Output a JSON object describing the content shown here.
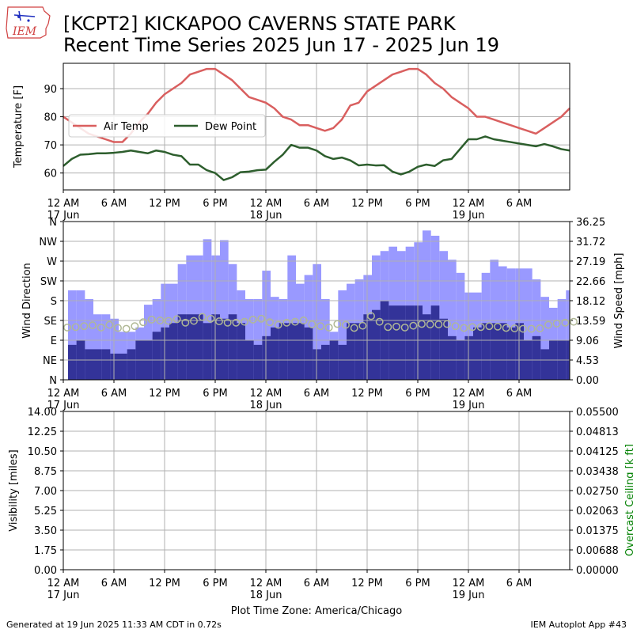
{
  "header": {
    "title_line1": "[KCPT2] KICKAPOO CAVERNS STATE PARK",
    "title_line2": "Recent Time Series 2025 Jun 17 - 2025 Jun 19",
    "logo_text": "IEM"
  },
  "footer": {
    "generated": "Generated at 19 Jun 2025 11:33 AM CDT in 0.72s",
    "app": "IEM Autoplot App #43"
  },
  "colors": {
    "air_temp": "#d95f5f",
    "dew_point": "#2d5e2d",
    "wind_gust": "#9999ff",
    "wind_speed": "#333399",
    "wind_dir_marker": "#b0b896",
    "ceiling_label": "#008000",
    "grid": "#b0b0b0"
  },
  "chart_data": [
    {
      "type": "line",
      "ylabel": "Temperature [F]",
      "ylim": [
        54,
        99
      ],
      "yticks": [
        60,
        70,
        80,
        90
      ],
      "xlim": [
        0,
        60
      ],
      "xticks": [
        "12 AM\n17 Jun",
        "6 AM",
        "12 PM",
        "6 PM",
        "12 AM\n18 Jun",
        "6 AM",
        "12 PM",
        "6 PM",
        "12 AM\n19 Jun",
        "6 AM"
      ],
      "grid": true,
      "legend_position": "upper-left",
      "series": [
        {
          "name": "Air Temp",
          "x": [
            0,
            1,
            2,
            3,
            4,
            5,
            6,
            7,
            8,
            9,
            10,
            11,
            12,
            13,
            14,
            15,
            16,
            17,
            18,
            19,
            20,
            21,
            22,
            23,
            24,
            25,
            26,
            27,
            28,
            29,
            30,
            31,
            32,
            33,
            34,
            35,
            36,
            37,
            38,
            39,
            40,
            41,
            42,
            43,
            44,
            45,
            46,
            47,
            48,
            49,
            50,
            51,
            52,
            53,
            54,
            55,
            56,
            57,
            58,
            59,
            60
          ],
          "y": [
            80,
            78,
            76,
            74,
            73,
            72,
            71,
            71,
            74,
            78,
            81,
            85,
            88,
            90,
            92,
            95,
            96,
            97,
            97,
            95,
            93,
            90,
            87,
            86,
            85,
            83,
            80,
            79,
            77,
            77,
            76,
            75,
            76,
            79,
            84,
            85,
            89,
            91,
            93,
            95,
            96,
            97,
            97,
            95,
            92,
            90,
            87,
            85,
            83,
            80,
            80,
            79,
            78,
            77,
            76,
            75,
            74,
            76,
            78,
            80,
            83
          ]
        },
        {
          "name": "Dew Point",
          "x": [
            0,
            1,
            2,
            3,
            4,
            5,
            6,
            7,
            8,
            9,
            10,
            11,
            12,
            13,
            14,
            15,
            16,
            17,
            18,
            19,
            20,
            21,
            22,
            23,
            24,
            25,
            26,
            27,
            28,
            29,
            30,
            31,
            32,
            33,
            34,
            35,
            36,
            37,
            38,
            39,
            40,
            41,
            42,
            43,
            44,
            45,
            46,
            47,
            48,
            49,
            50,
            51,
            52,
            53,
            54,
            55,
            56,
            57,
            58,
            59,
            60
          ],
          "y": [
            62.5,
            65,
            66.5,
            66.7,
            67,
            67,
            67.2,
            67.5,
            68,
            67.5,
            67,
            68,
            67.5,
            66.5,
            66,
            63,
            63,
            61,
            60,
            57.5,
            58.5,
            60.3,
            60.5,
            61,
            61.2,
            64,
            66.5,
            70,
            69,
            69,
            68,
            66,
            65,
            65.5,
            64.5,
            62.7,
            63,
            62.7,
            62.8,
            60.5,
            59.5,
            60.5,
            62.2,
            63,
            62.5,
            64.5,
            65,
            68.5,
            72,
            72,
            73,
            72,
            71.5,
            71,
            70.5,
            70,
            69.5,
            70.3,
            69.5,
            68.5,
            68
          ]
        }
      ]
    },
    {
      "type": "bar",
      "ylabel": "Wind Direction",
      "ylabel_right": "Wind Speed [mph]",
      "dir_ticks": [
        "N",
        "NE",
        "E",
        "SE",
        "S",
        "SW",
        "W",
        "NW",
        "N"
      ],
      "speed_ticks": [
        "0.00",
        "4.53",
        "9.06",
        "13.59",
        "18.12",
        "22.66",
        "27.19",
        "31.72",
        "36.25"
      ],
      "speed_ylim": [
        0,
        36.25
      ],
      "dir_ylim": [
        0,
        360
      ],
      "xlim": [
        0,
        60
      ],
      "grid": true,
      "gust": [
        20.5,
        20.5,
        18.5,
        15,
        15,
        14,
        11,
        11,
        12,
        17.2,
        18.5,
        22,
        22,
        26.5,
        28.5,
        28.5,
        32.2,
        28.5,
        32,
        26.5,
        20.5,
        18.5,
        18.5,
        25,
        19,
        18.5,
        28.5,
        22,
        24,
        26.5,
        18.5,
        11,
        20.5,
        22,
        23,
        24,
        28.5,
        29.5,
        30.5,
        29.5,
        30.5,
        31.5,
        34.2,
        33,
        29.5,
        27.5,
        24.5,
        20,
        20,
        24.5,
        27.5,
        26,
        25.5,
        25.5,
        25.5,
        23,
        19,
        16.5,
        18.5,
        20.5,
        25.5
      ],
      "speed": [
        8,
        9,
        7,
        7,
        7,
        6,
        6,
        7,
        9,
        9,
        11,
        12,
        13,
        15,
        15,
        15,
        13,
        15,
        14,
        15,
        13,
        9,
        8,
        10,
        12,
        13,
        13,
        13,
        12,
        7,
        8,
        9,
        8,
        13,
        13,
        15,
        16,
        18,
        17,
        17,
        17,
        17,
        15,
        17,
        14,
        10,
        9,
        10,
        12,
        13,
        13,
        13,
        12,
        13,
        9,
        10,
        7,
        9,
        9,
        9,
        13
      ],
      "direction": [
        119,
        120,
        122,
        124,
        119,
        125,
        118,
        116,
        122,
        131,
        137,
        135,
        134,
        138,
        130,
        134,
        143,
        139,
        133,
        130,
        130,
        132,
        137,
        139,
        131,
        125,
        130,
        132,
        135,
        126,
        122,
        119,
        127,
        125,
        118,
        123,
        145,
        132,
        120,
        121,
        119,
        123,
        127,
        126,
        126,
        127,
        122,
        118,
        120,
        120,
        122,
        121,
        118,
        117,
        116,
        116,
        117,
        125,
        128,
        130,
        132
      ]
    },
    {
      "type": "line",
      "ylabel": "Visibility [miles]",
      "ylabel_right": "Overcast Ceiling [k ft]",
      "vis_ticks": [
        "0.00",
        "1.75",
        "3.50",
        "5.25",
        "7.00",
        "8.75",
        "10.50",
        "12.25",
        "14.00"
      ],
      "ceil_ticks": [
        "0.00000",
        "0.00688",
        "0.01375",
        "0.02063",
        "0.02750",
        "0.03438",
        "0.04125",
        "0.04813",
        "0.05500"
      ],
      "xlim": [
        0,
        60
      ],
      "xlabel": "Plot Time Zone: America/Chicago",
      "grid": true,
      "series": []
    }
  ]
}
